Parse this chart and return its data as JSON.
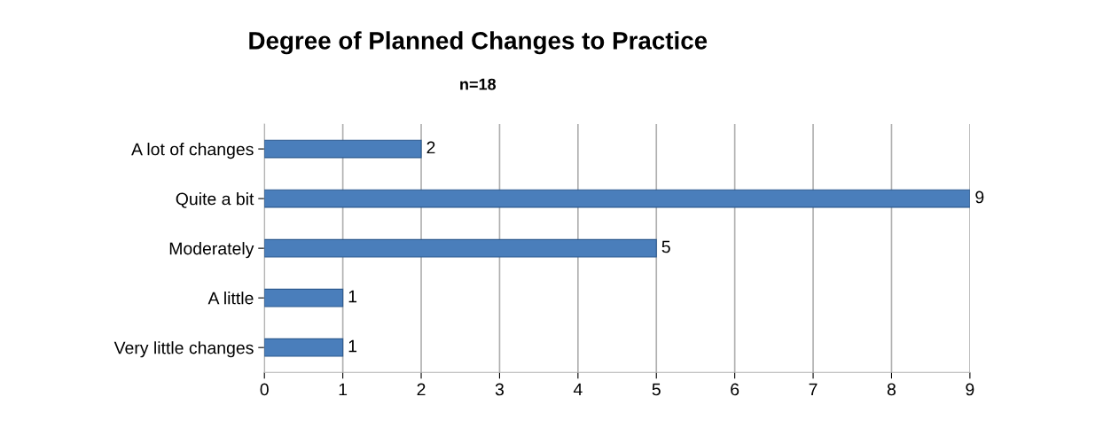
{
  "chart_data": {
    "type": "bar",
    "orientation": "horizontal",
    "title": "Degree of Planned Changes to Practice",
    "subtitle": "n=18",
    "categories": [
      "A lot of changes",
      "Quite a bit",
      "Moderately",
      "A little",
      "Very little changes"
    ],
    "values": [
      2,
      9,
      5,
      1,
      1
    ],
    "color": "#4a7ebb",
    "xlim": [
      0,
      9
    ],
    "xticks": [
      0,
      1,
      2,
      3,
      4,
      5,
      6,
      7,
      8,
      9
    ],
    "grid": "x",
    "data_labels": true
  }
}
